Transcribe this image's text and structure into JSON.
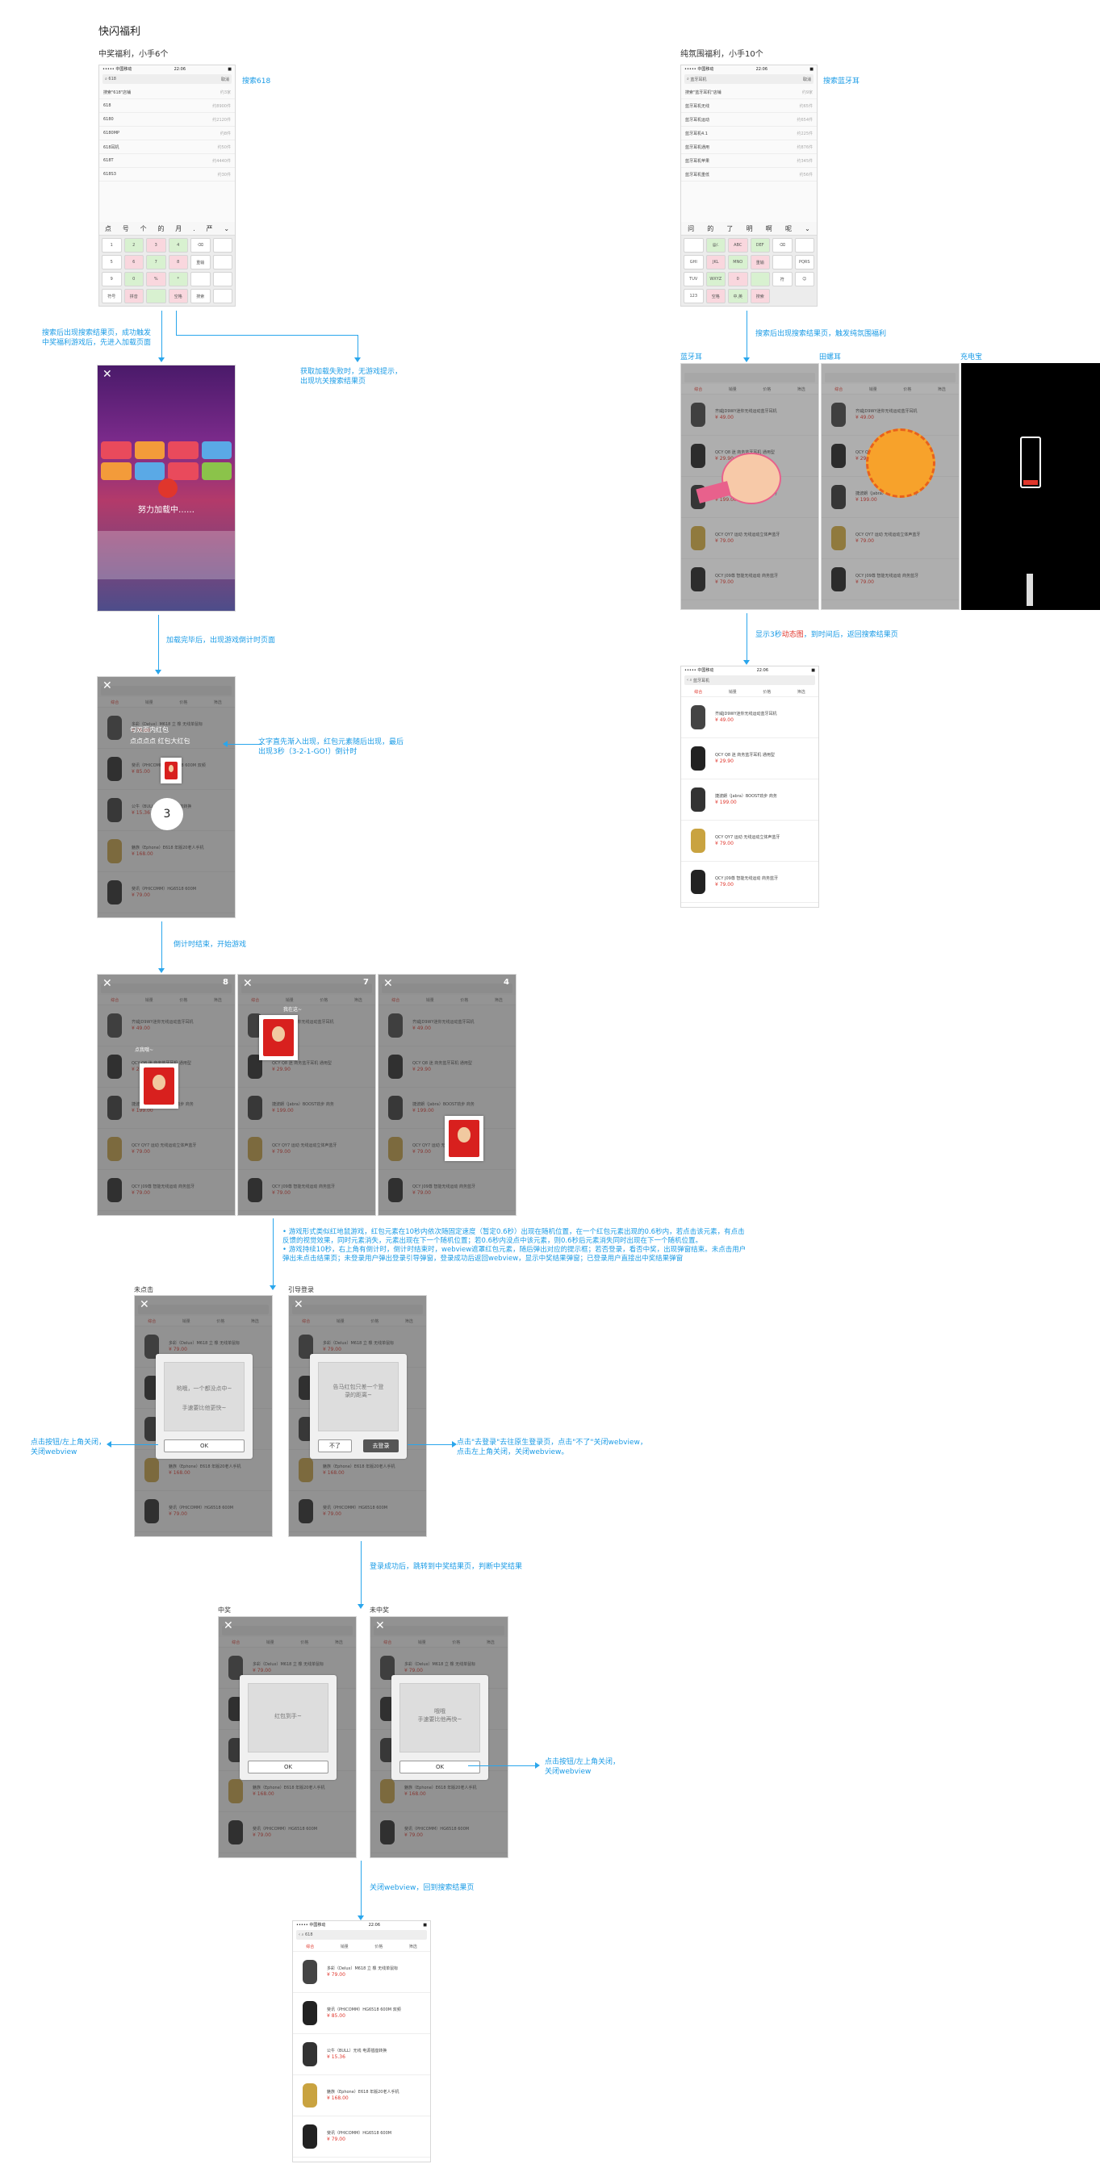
{
  "page_title": "快闪福利",
  "sections": {
    "left_header": "中奖福利，小手6个",
    "right_header": "纯氛围福利，小手10个"
  },
  "phone_status": {
    "carrier": "••••• 中国移动",
    "time": "22:06",
    "battery": "■"
  },
  "search_phone_left": {
    "query": "618",
    "cancel": "取消",
    "suggestions": [
      {
        "text": "搜索\"618\"店铺",
        "count": "约3家"
      },
      {
        "text": "618",
        "count": "约8900件"
      },
      {
        "text": "6180",
        "count": "约2120件"
      },
      {
        "text": "6180MP",
        "count": "约8件"
      },
      {
        "text": "618耳机",
        "count": "约50件"
      },
      {
        "text": "618T",
        "count": "约4440件"
      },
      {
        "text": "618S3",
        "count": "约30件"
      }
    ],
    "candidates": [
      "点",
      "号",
      "个",
      "的",
      "月",
      ".",
      "严",
      "⌄"
    ],
    "keys": [
      "1",
      "2",
      "3",
      "4",
      "⌫",
      "",
      "5",
      "6",
      "7",
      "8",
      "重输",
      "",
      "9",
      "0",
      "%",
      "*",
      "",
      "",
      "符号",
      "拼音",
      "",
      "空格",
      "搜索",
      ""
    ]
  },
  "search_phone_right": {
    "query": "蓝牙耳机",
    "cancel": "取消",
    "suggestions": [
      {
        "text": "搜索\"蓝牙耳机\"店铺",
        "count": "约9家"
      },
      {
        "text": "蓝牙耳机无线",
        "count": "约65件"
      },
      {
        "text": "蓝牙耳机运动",
        "count": "约654件"
      },
      {
        "text": "蓝牙耳机4.1",
        "count": "约225件"
      },
      {
        "text": "蓝牙耳机通用",
        "count": "约876件"
      },
      {
        "text": "蓝牙耳机苹果",
        "count": "约345件"
      },
      {
        "text": "蓝牙耳机重低",
        "count": "约56件"
      }
    ],
    "candidates": [
      "问",
      "的",
      "了",
      "明",
      "啊",
      "呢",
      "⌄"
    ],
    "keys": [
      "",
      "@/.",
      "ABC",
      "DEF",
      "⌫",
      "",
      "GHI",
      "JKL",
      "MNO",
      "重输",
      "",
      "PQRS",
      "TUV",
      "WXYZ",
      "0",
      "",
      "符",
      "☺",
      "123",
      "空格",
      "中,英",
      "搜索"
    ]
  },
  "annotations": {
    "search_618_label": "搜索618",
    "search_bt_label": "搜索蓝牙耳",
    "flow1_left": "搜索后出现搜索结果页，成功触发\n中奖福利游戏后，先进入加载页面",
    "flow1_right": "获取加载失败时，无游戏提示，\n出现坑关搜索结果页",
    "loading_text": "努力加载中……",
    "flow2": "加载完毕后，出现游戏倒计时页面",
    "countdown_note": "文字直先渐入出现，红包元素随后出现，最后\n出现3秒（3-2-1-GO!）倒计时",
    "countdown_dialog_line1": "勾双面内红包",
    "countdown_dialog_line2": "点点点点 红包大红包",
    "countdown_number": "3",
    "flow3": "倒计时结束，开始游戏",
    "game_counters": [
      "8",
      "7",
      "4"
    ],
    "game_hint_left": "点我哦~",
    "game_hint_mid": "我在这~",
    "rules_note": "• 游戏形式类似红地鼠游戏，红包元素在10秒内依次随固定速度（暂定0.6秒）出现在随机位置，在一个红包元素出现的0.6秒内，若点击该元素，有点击\n  反馈的视觉效果，同时元素消失，元素出现在下一个随机位置；若0.6秒内没点中该元素，则0.6秒后元素消失同时出现在下一个随机位置。\n• 游戏持续10秒，右上角有倒计时，倒计时结束时，webview遮罩红包元素，随后弹出对应的提示框；若否登录，看否中奖，出现弹窗结束。未点击用户\n  弹出未点击结果页；未登录用户弹出登录引导弹窗，登录成功后返回webview，显示中奖结果弹窗；已登录用户直接出中奖结果弹窗",
    "flow_right1": "搜索后出现搜索结果页，触发纯氛围福利",
    "right_labels": [
      "蓝牙耳",
      "田螺耳",
      "充电宝"
    ],
    "flow_right2_a": "显示3秒",
    "flow_right2_b": "动态图",
    "flow_right2_c": "，到时间后，返回搜索结果页",
    "unclicked_label": "未点击",
    "login_label": "引导登录",
    "unclicked_dialog": "哟哦，一个都没点中~",
    "unclicked_dialog2": "手速要比他更快~",
    "unclicked_ok": "OK",
    "login_dialog": "告马红包只差一个登\n录的距离~",
    "login_no": "不了",
    "login_go": "去登录",
    "note_left_close": "点击按钮/左上角关闭，\n关闭webview",
    "note_right_login": "点击\"去登录\"去往原生登录页，点击\"不了\"关闭webview，\n点击左上角关闭，关闭webview。",
    "flow4": "登录成功后，跳转到中奖结果页，判断中奖结果",
    "win_label": "中奖",
    "lose_label": "未中奖",
    "win_dialog": "红包到手~",
    "lose_dialog": "哦哦\n手速要比他再快~",
    "ok": "OK",
    "note_close2": "点击按钮/左上角关闭，\n关闭webview",
    "flow5": "关闭webview，回到搜索结果页"
  },
  "result_list": {
    "tabs": [
      "综合",
      "销量",
      "价格",
      "筛选"
    ],
    "products": [
      {
        "name": "齐威JD9WY迷你无线运动蓝牙耳机",
        "price": "¥ 49.00"
      },
      {
        "name": "QCY Q8 迷 商务蓝牙耳机 通用型",
        "price": "¥ 29.90"
      },
      {
        "name": "捷波朗（Jabra）BOOST劲步 商务",
        "price": "¥ 199.00"
      },
      {
        "name": "QCY QY7 运动 无线运动立体声蓝牙",
        "price": "¥ 79.00"
      },
      {
        "name": "QCY J09尊 智能无线运动 商务蓝牙",
        "price": "¥ 79.00"
      }
    ]
  },
  "result_list_b": {
    "products": [
      {
        "name": "多彩（Delux）M618 立 橡 无线单鼠标",
        "price": "¥ 79.00"
      },
      {
        "name": "斐讯（PHICOMM）HG6518 600M 双频",
        "price": "¥ 85.00"
      },
      {
        "name": "公牛（BULL）无线 电源插座转换",
        "price": "¥ 15.36"
      },
      {
        "name": "魅族（Ephone）E618 年版20老人手机",
        "price": "¥ 168.00"
      },
      {
        "name": "斐讯（PHICOMM）HG6518 600M",
        "price": "¥ 79.00"
      }
    ]
  },
  "colors": {
    "accent": "#1a9be6",
    "price": "#e0362c",
    "dialog": "#f0f0f0"
  }
}
